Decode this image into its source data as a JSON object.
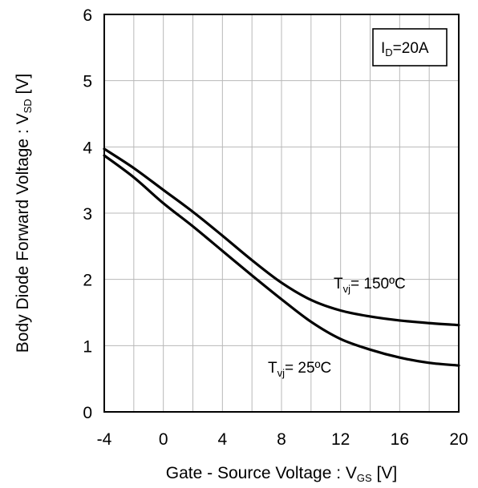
{
  "chart_data": {
    "type": "line",
    "xlabel": {
      "main": "Gate - Source Voltage : V",
      "sub": "GS",
      "unit": " [V]"
    },
    "ylabel": {
      "main": "Body Diode  Forward Voltage : V",
      "sub": "SD",
      "unit": " [V]"
    },
    "xlim": [
      -4,
      20
    ],
    "ylim": [
      0,
      6
    ],
    "xticks": [
      -4,
      0,
      4,
      8,
      12,
      16,
      20
    ],
    "yticks": [
      0,
      1,
      2,
      3,
      4,
      5,
      6
    ],
    "grid_x_step": 2,
    "grid_y_step": 1,
    "grid": true,
    "condition": {
      "main": "I",
      "sub": "D",
      "rest": "=20A"
    },
    "series": [
      {
        "name": "Tvj= 150ºC",
        "label": {
          "main": "T",
          "sub": "vj",
          "rest": "= 150ºC"
        },
        "x": [
          -4,
          -2,
          0,
          2,
          4,
          6,
          8,
          10,
          12,
          14,
          16,
          18,
          20
        ],
        "y": [
          3.97,
          3.68,
          3.35,
          3.02,
          2.66,
          2.29,
          1.95,
          1.69,
          1.53,
          1.44,
          1.38,
          1.34,
          1.31
        ]
      },
      {
        "name": "Tvj= 25ºC",
        "label": {
          "main": "T",
          "sub": "vj",
          "rest": "= 25ºC"
        },
        "x": [
          -4,
          -2,
          0,
          2,
          4,
          6,
          8,
          10,
          12,
          14,
          16,
          18,
          20
        ],
        "y": [
          3.87,
          3.54,
          3.15,
          2.8,
          2.43,
          2.06,
          1.7,
          1.36,
          1.1,
          0.94,
          0.82,
          0.74,
          0.7
        ]
      }
    ]
  }
}
